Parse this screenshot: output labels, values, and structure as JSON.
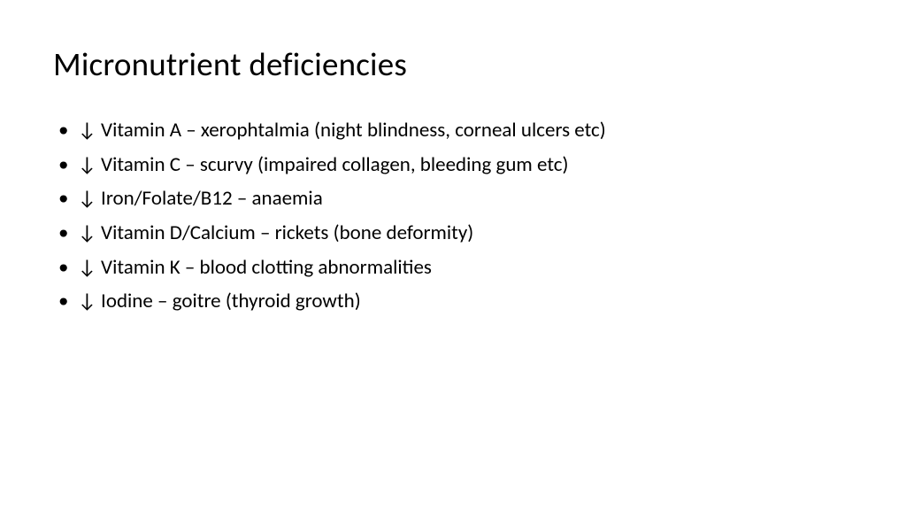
{
  "slide": {
    "title": "Micronutrient deficiencies",
    "title_fontsize": 37,
    "title_color": "#000000",
    "background_color": "#ffffff",
    "body_fontsize": 23,
    "body_color": "#000000",
    "font_family": "Calibri",
    "bullets": [
      "↓ Vitamin A – xerophtalmia (night blindness, corneal ulcers etc)",
      "↓ Vitamin C – scurvy (impaired collagen, bleeding gum etc)",
      "↓ Iron/Folate/B12 – anaemia",
      "↓ Vitamin D/Calcium – rickets (bone deformity)",
      "↓ Vitamin K – blood clotting abnormalities",
      "↓ Iodine – goitre (thyroid growth)"
    ]
  }
}
